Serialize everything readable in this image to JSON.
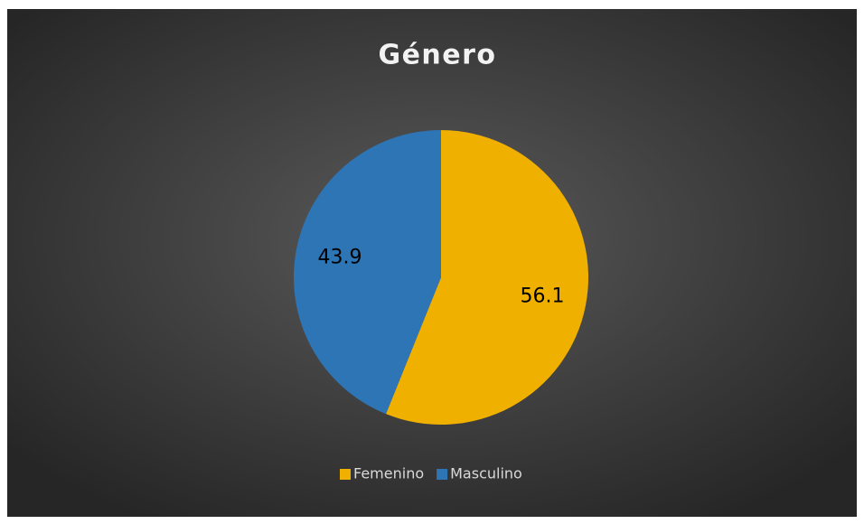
{
  "chart_data": {
    "type": "pie",
    "title": "Género",
    "categories": [
      "Femenino",
      "Masculino"
    ],
    "values": [
      56.1,
      43.9
    ],
    "colors": [
      "#f0b000",
      "#2e75b6"
    ],
    "legend": "bottom"
  }
}
